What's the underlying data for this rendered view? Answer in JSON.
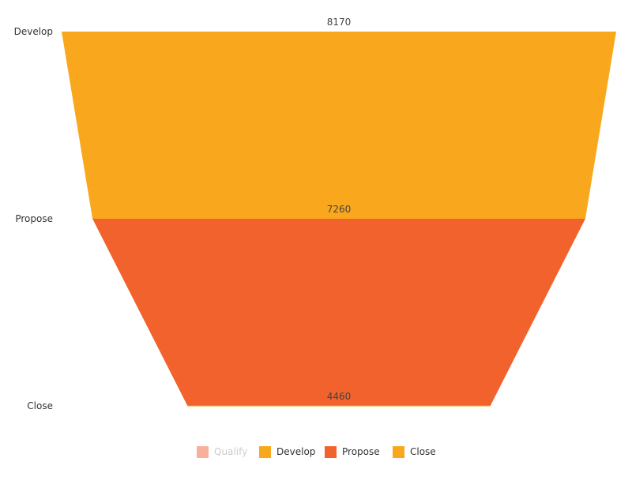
{
  "chart_data": {
    "type": "funnel",
    "categories": [
      "Develop",
      "Propose",
      "Close"
    ],
    "values": [
      8170,
      7260,
      4460
    ],
    "value_labels": [
      "8170",
      "7260",
      "4460"
    ],
    "colors": [
      "#F9A71D",
      "#F2622D",
      "#F9A71D"
    ],
    "legend": {
      "position": "bottom",
      "items": [
        {
          "label": "Qualify",
          "color": "#F8B09A",
          "text_color": "#CCCCCC",
          "hidden": true
        },
        {
          "label": "Develop",
          "color": "#F9A71D",
          "text_color": "#333333",
          "hidden": false
        },
        {
          "label": "Propose",
          "color": "#F2622D",
          "text_color": "#333333",
          "hidden": false
        },
        {
          "label": "Close",
          "color": "#F9A71D",
          "text_color": "#333333",
          "hidden": false
        }
      ]
    }
  }
}
